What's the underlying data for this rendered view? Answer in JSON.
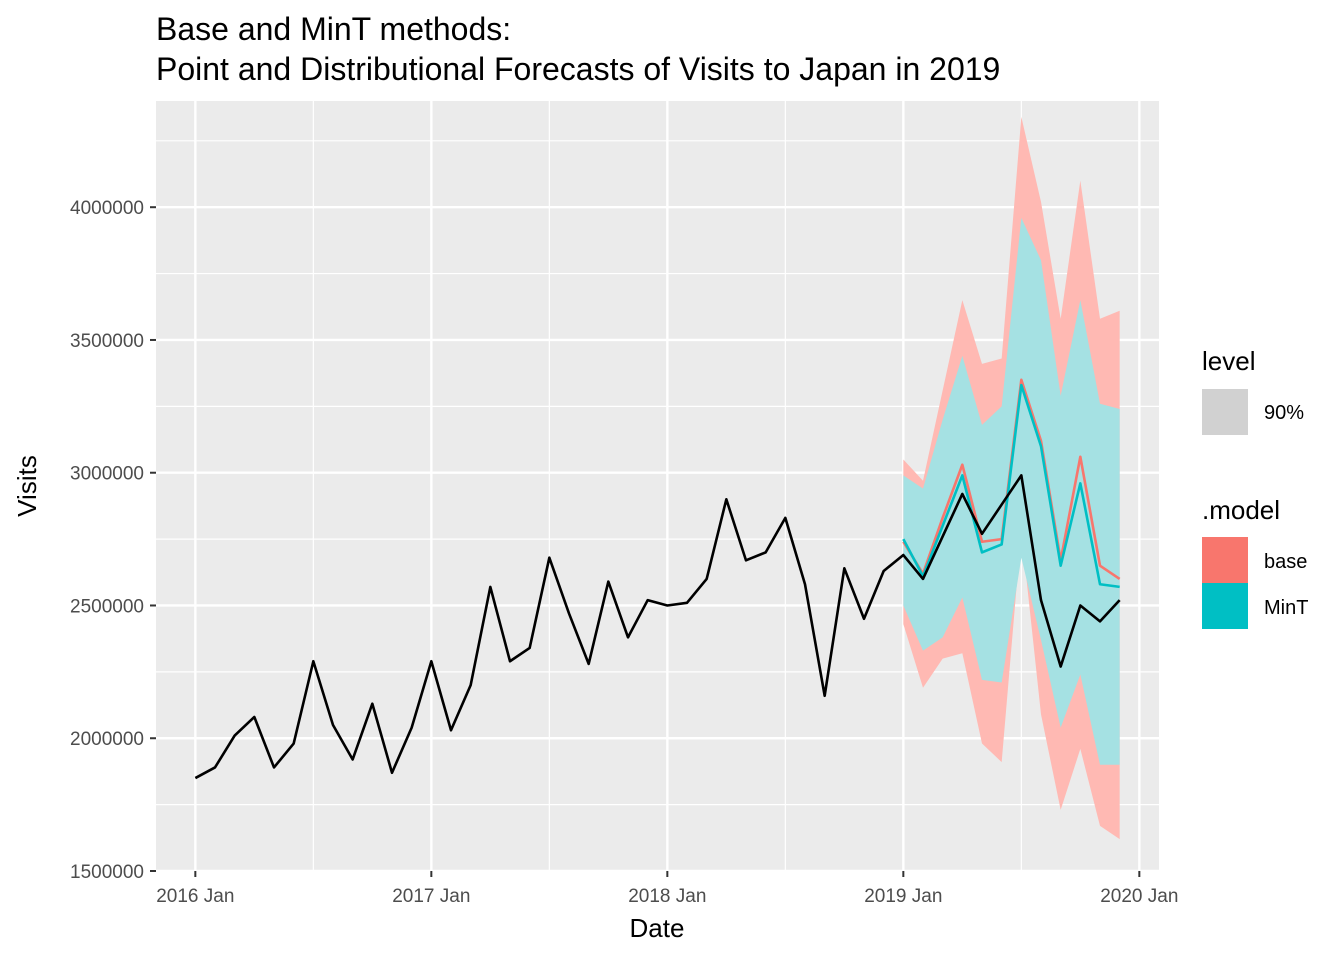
{
  "chart_data": {
    "type": "line",
    "title": "Base and MinT methods:",
    "subtitle": "Point and Distributional Forecasts of Visits to Japan in 2019",
    "xlabel": "Date",
    "ylabel": "Visits",
    "x_ticks": [
      "2016 Jan",
      "2017 Jan",
      "2018 Jan",
      "2019 Jan",
      "2020 Jan"
    ],
    "y_ticks": [
      "1500000",
      "2000000",
      "2500000",
      "3000000",
      "3500000",
      "4000000"
    ],
    "xlim": [
      "2015-11",
      "2020-02"
    ],
    "ylim": [
      1500000,
      4400000
    ],
    "grid": true,
    "background": "#ebebeb",
    "colors": {
      "base": "#f8766d",
      "MinT": "#00bfc4",
      "base_band": "#ffb9b3",
      "MinT_band": "#a5e1e3",
      "actual": "#000000"
    },
    "series": [
      {
        "name": "",
        "x": [
          "2016-01",
          "2016-02",
          "2016-03",
          "2016-04",
          "2016-05",
          "2016-06",
          "2016-07",
          "2016-08",
          "2016-09",
          "2016-10",
          "2016-11",
          "2016-12",
          "2017-01",
          "2017-02",
          "2017-03",
          "2017-04",
          "2017-05",
          "2017-06",
          "2017-07",
          "2017-08",
          "2017-09",
          "2017-10",
          "2017-11",
          "2017-12",
          "2018-01",
          "2018-02",
          "2018-03",
          "2018-04",
          "2018-05",
          "2018-06",
          "2018-07",
          "2018-08",
          "2018-09",
          "2018-10",
          "2018-11",
          "2018-12",
          "2019-01",
          "2019-02",
          "2019-03",
          "2019-04",
          "2019-05",
          "2019-06",
          "2019-07",
          "2019-08",
          "2019-09",
          "2019-10",
          "2019-11",
          "2019-12"
        ],
        "values": [
          1850000,
          1890000,
          2010000,
          2080000,
          1890000,
          1980000,
          2290000,
          2050000,
          1920000,
          2130000,
          1870000,
          2040000,
          2290000,
          2030000,
          2200000,
          2570000,
          2290000,
          2340000,
          2680000,
          2470000,
          2280000,
          2590000,
          2380000,
          2520000,
          2500000,
          2510000,
          2600000,
          2900000,
          2670000,
          2700000,
          2830000,
          2580000,
          2160000,
          2640000,
          2450000,
          2630000,
          2690000,
          2600000,
          2760000,
          2920000,
          2770000,
          2880000,
          2990000,
          2520000,
          2270000,
          2500000,
          2440000,
          2520000
        ]
      },
      {
        "name": "base",
        "x": [
          "2019-01",
          "2019-02",
          "2019-03",
          "2019-04",
          "2019-05",
          "2019-06",
          "2019-07",
          "2019-08",
          "2019-09",
          "2019-10",
          "2019-11",
          "2019-12"
        ],
        "values": [
          2740000,
          2620000,
          2830000,
          3030000,
          2740000,
          2750000,
          3350000,
          3120000,
          2670000,
          3060000,
          2650000,
          2600000
        ],
        "lower": [
          2430000,
          2190000,
          2300000,
          2320000,
          1980000,
          1910000,
          2780000,
          2090000,
          1730000,
          1960000,
          1670000,
          1620000
        ],
        "upper": [
          3050000,
          2970000,
          3310000,
          3650000,
          3410000,
          3430000,
          4340000,
          4020000,
          3580000,
          4100000,
          3580000,
          3610000
        ]
      },
      {
        "name": "MinT",
        "x": [
          "2019-01",
          "2019-02",
          "2019-03",
          "2019-04",
          "2019-05",
          "2019-06",
          "2019-07",
          "2019-08",
          "2019-09",
          "2019-10",
          "2019-11",
          "2019-12"
        ],
        "values": [
          2750000,
          2610000,
          2800000,
          2990000,
          2700000,
          2730000,
          3330000,
          3100000,
          2650000,
          2960000,
          2580000,
          2570000
        ],
        "lower": [
          2500000,
          2330000,
          2380000,
          2530000,
          2220000,
          2210000,
          2680000,
          2370000,
          2040000,
          2240000,
          1900000,
          1900000
        ],
        "upper": [
          2990000,
          2940000,
          3200000,
          3440000,
          3180000,
          3250000,
          3960000,
          3800000,
          3290000,
          3650000,
          3260000,
          3240000
        ]
      }
    ],
    "legend": {
      "position": "right",
      "level_title": "level",
      "level_label": "90%",
      "model_title": ".model",
      "model_labels": [
        "base",
        "MinT"
      ]
    }
  }
}
